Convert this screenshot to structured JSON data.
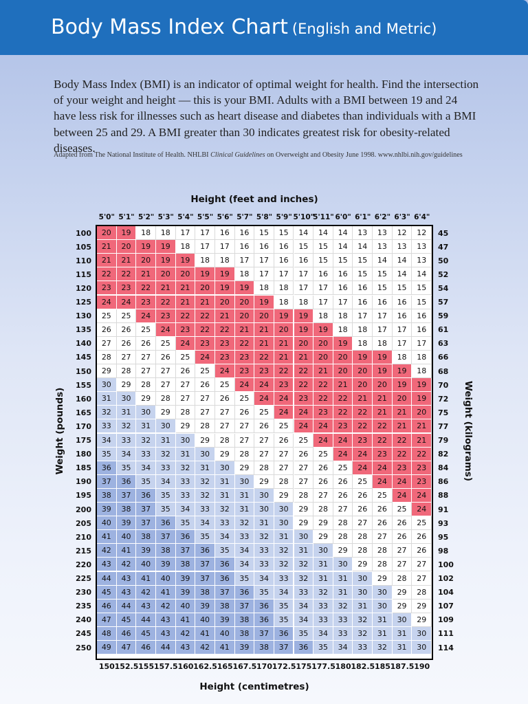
{
  "header": {
    "title": "Body Mass Index Chart",
    "subtitle": "(English and Metric)"
  },
  "intro": {
    "text": "Body Mass Index (BMI) is an indicator of optimal weight for health. Find the intersection of your weight and height — this is your BMI. Adults with a BMI between 19 and 24 have less risk for illnesses such as heart disease and diabetes than individuals with a BMI between 25 and 29. A BMI greater than 30 indicates greatest risk for obesity-related diseases.",
    "source_prefix": "Adapted from The National Institute of Health. NHLBI ",
    "source_italic": "Clinical Guidelines",
    "source_suffix": " on Overweight and Obesity June 1998. www.nhlbi.nih.gov/guidelines"
  },
  "colors": {
    "header_bg": "#1f6fbd",
    "healthy": "#f0687a",
    "overweight": "#ffffff",
    "obese_light": "#c6d3ee",
    "obese_mid": "#9db2e0",
    "underweight": "#ffffff"
  },
  "chart_data": {
    "type": "table",
    "title": "Body Mass Index Chart",
    "x_top_label": "Height (feet and inches)",
    "x_bottom_label": "Height (centimetres)",
    "y_left_label": "Weight (pounds)",
    "y_right_label": "Weight (kilograms)",
    "heights_ft": [
      "5'0\"",
      "5'1\"",
      "5'2\"",
      "5'3\"",
      "5'4\"",
      "5'5\"",
      "5'6\"",
      "5'7\"",
      "5'8\"",
      "5'9\"",
      "5'10\"",
      "5'11\"",
      "6'0\"",
      "6'1\"",
      "6'2\"",
      "6'3\"",
      "6'4\""
    ],
    "heights_cm": [
      "150",
      "152.5",
      "155",
      "157.5",
      "160",
      "162.5",
      "165",
      "167.5",
      "170",
      "172.5",
      "175",
      "177.5",
      "180",
      "182.5",
      "185",
      "187.5",
      "190"
    ],
    "weights_lb": [
      "100",
      "105",
      "110",
      "115",
      "120",
      "125",
      "130",
      "135",
      "140",
      "145",
      "150",
      "155",
      "160",
      "165",
      "170",
      "175",
      "180",
      "185",
      "190",
      "195",
      "200",
      "205",
      "210",
      "215",
      "220",
      "225",
      "230",
      "235",
      "240",
      "245",
      "250"
    ],
    "weights_kg": [
      "45",
      "47",
      "50",
      "52",
      "54",
      "57",
      "59",
      "61",
      "63",
      "66",
      "68",
      "70",
      "72",
      "75",
      "77",
      "79",
      "82",
      "84",
      "86",
      "88",
      "91",
      "93",
      "95",
      "98",
      "100",
      "102",
      "104",
      "107",
      "109",
      "111",
      "114"
    ],
    "bmi": [
      [
        20,
        19,
        18,
        18,
        17,
        17,
        16,
        16,
        15,
        15,
        14,
        14,
        14,
        13,
        13,
        12,
        12
      ],
      [
        21,
        20,
        19,
        19,
        18,
        17,
        17,
        16,
        16,
        16,
        15,
        15,
        14,
        14,
        13,
        13,
        13
      ],
      [
        21,
        21,
        20,
        19,
        19,
        18,
        18,
        17,
        17,
        16,
        16,
        15,
        15,
        15,
        14,
        14,
        13
      ],
      [
        22,
        22,
        21,
        20,
        20,
        19,
        19,
        18,
        17,
        17,
        17,
        16,
        16,
        15,
        15,
        14,
        14
      ],
      [
        23,
        23,
        22,
        21,
        21,
        20,
        19,
        19,
        18,
        18,
        17,
        17,
        16,
        16,
        15,
        15,
        15
      ],
      [
        24,
        24,
        23,
        22,
        21,
        21,
        20,
        20,
        19,
        18,
        18,
        17,
        17,
        16,
        16,
        16,
        15
      ],
      [
        25,
        25,
        24,
        23,
        22,
        22,
        21,
        20,
        20,
        19,
        19,
        18,
        18,
        17,
        17,
        16,
        16
      ],
      [
        26,
        26,
        25,
        24,
        23,
        22,
        22,
        21,
        21,
        20,
        19,
        19,
        18,
        18,
        17,
        17,
        16
      ],
      [
        27,
        26,
        26,
        25,
        24,
        23,
        23,
        22,
        21,
        21,
        20,
        20,
        19,
        18,
        18,
        17,
        17
      ],
      [
        28,
        27,
        27,
        26,
        25,
        24,
        23,
        23,
        22,
        21,
        21,
        20,
        20,
        19,
        19,
        18,
        18
      ],
      [
        29,
        28,
        27,
        27,
        26,
        25,
        24,
        23,
        23,
        22,
        22,
        21,
        20,
        20,
        19,
        19,
        18
      ],
      [
        30,
        29,
        28,
        27,
        27,
        26,
        25,
        24,
        24,
        23,
        22,
        22,
        21,
        20,
        20,
        19,
        19
      ],
      [
        31,
        30,
        29,
        28,
        27,
        27,
        26,
        25,
        24,
        24,
        23,
        22,
        22,
        21,
        21,
        20,
        19
      ],
      [
        32,
        31,
        30,
        29,
        28,
        27,
        27,
        26,
        25,
        24,
        24,
        23,
        22,
        22,
        21,
        21,
        20
      ],
      [
        33,
        32,
        31,
        30,
        29,
        28,
        27,
        27,
        26,
        25,
        24,
        24,
        23,
        22,
        22,
        21,
        21
      ],
      [
        34,
        33,
        32,
        31,
        30,
        29,
        28,
        27,
        27,
        26,
        25,
        24,
        24,
        23,
        22,
        22,
        21
      ],
      [
        35,
        34,
        33,
        32,
        31,
        30,
        29,
        28,
        27,
        27,
        26,
        25,
        24,
        24,
        23,
        22,
        22
      ],
      [
        36,
        35,
        34,
        33,
        32,
        31,
        30,
        29,
        28,
        27,
        27,
        26,
        25,
        24,
        24,
        23,
        23
      ],
      [
        37,
        36,
        35,
        34,
        33,
        32,
        31,
        30,
        29,
        28,
        27,
        26,
        26,
        25,
        24,
        24,
        23
      ],
      [
        38,
        37,
        36,
        35,
        33,
        32,
        31,
        31,
        30,
        29,
        28,
        27,
        26,
        26,
        25,
        24,
        24
      ],
      [
        39,
        38,
        37,
        35,
        34,
        33,
        32,
        31,
        30,
        30,
        29,
        28,
        27,
        26,
        26,
        25,
        24
      ],
      [
        40,
        39,
        37,
        36,
        35,
        34,
        33,
        32,
        31,
        30,
        29,
        29,
        28,
        27,
        26,
        26,
        25
      ],
      [
        41,
        40,
        38,
        37,
        36,
        35,
        34,
        33,
        32,
        31,
        30,
        29,
        28,
        28,
        27,
        26,
        26
      ],
      [
        42,
        41,
        39,
        38,
        37,
        36,
        35,
        34,
        33,
        32,
        31,
        30,
        29,
        28,
        28,
        27,
        26
      ],
      [
        43,
        42,
        40,
        39,
        38,
        37,
        36,
        34,
        33,
        32,
        32,
        31,
        30,
        29,
        28,
        27,
        27
      ],
      [
        44,
        43,
        41,
        40,
        39,
        37,
        36,
        35,
        34,
        33,
        32,
        31,
        31,
        30,
        29,
        28,
        27
      ],
      [
        45,
        43,
        42,
        41,
        39,
        38,
        37,
        36,
        35,
        34,
        33,
        32,
        31,
        30,
        30,
        29,
        28
      ],
      [
        46,
        44,
        43,
        42,
        40,
        39,
        38,
        37,
        36,
        35,
        34,
        33,
        32,
        31,
        30,
        29,
        29
      ],
      [
        47,
        45,
        44,
        43,
        41,
        40,
        39,
        38,
        36,
        35,
        34,
        33,
        33,
        32,
        31,
        30,
        29
      ],
      [
        48,
        46,
        45,
        43,
        42,
        41,
        40,
        38,
        37,
        36,
        35,
        34,
        33,
        32,
        31,
        31,
        30
      ],
      [
        49,
        47,
        46,
        44,
        43,
        42,
        41,
        39,
        38,
        37,
        36,
        35,
        34,
        33,
        32,
        31,
        30
      ]
    ]
  }
}
